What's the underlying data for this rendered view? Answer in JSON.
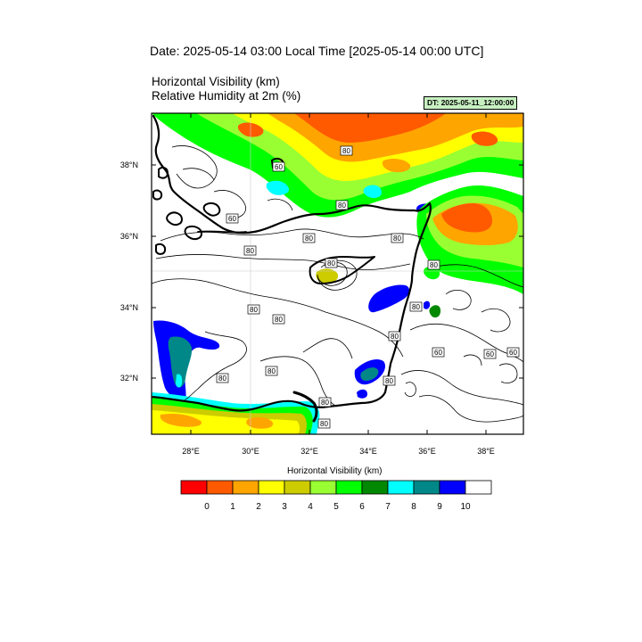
{
  "header": {
    "date_line": "Date: 2025-05-14  03:00 Local Time [2025-05-14  00:00 UTC]",
    "field1": "Horizontal Visibility   (km)",
    "field2": "Relative Humidity at 2m   (%)",
    "run_badge": "DT: 2025-05-11_12:00:00"
  },
  "map": {
    "lon_ticks": [
      "28°E",
      "30°E",
      "32°E",
      "34°E",
      "36°E",
      "38°E"
    ],
    "lat_ticks": [
      "38°N",
      "36°N",
      "34°N",
      "32°N"
    ],
    "contour_labels": [
      "60",
      "80",
      "60",
      "80",
      "80",
      "80",
      "80",
      "80",
      "80",
      "80",
      "80",
      "80",
      "80",
      "80",
      "60",
      "60",
      "60",
      "80",
      "80"
    ]
  },
  "colorbar": {
    "title": "Horizontal Visibility  (km)",
    "colors": [
      "#ff0000",
      "#ff5a00",
      "#ffa500",
      "#ffff00",
      "#cccc00",
      "#99ff33",
      "#00ff00",
      "#008800",
      "#00ffff",
      "#008888",
      "#0000ff",
      "#ffffff"
    ],
    "labels": [
      "0",
      "1",
      "2",
      "3",
      "4",
      "5",
      "6",
      "7",
      "8",
      "9",
      "10"
    ]
  }
}
